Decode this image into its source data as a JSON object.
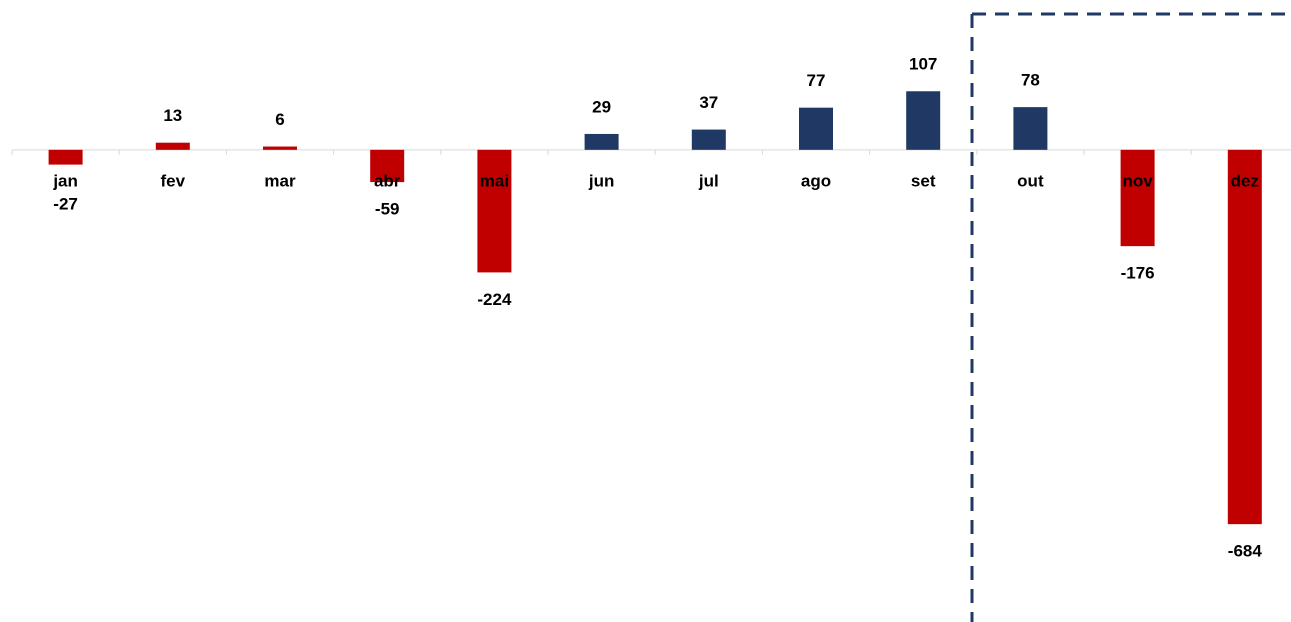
{
  "chart_data": {
    "type": "bar",
    "categories": [
      "jan",
      "fev",
      "mar",
      "abr",
      "mai",
      "jun",
      "jul",
      "ago",
      "set",
      "out",
      "nov",
      "dez"
    ],
    "values": [
      -27,
      13,
      6,
      -59,
      -224,
      29,
      37,
      77,
      107,
      78,
      -176,
      -684
    ],
    "colors": [
      "#c00000",
      "#c00000",
      "#c00000",
      "#c00000",
      "#c00000",
      "#203864",
      "#203864",
      "#203864",
      "#203864",
      "#203864",
      "#c00000",
      "#c00000"
    ],
    "ylim": [
      -850,
      250
    ]
  }
}
